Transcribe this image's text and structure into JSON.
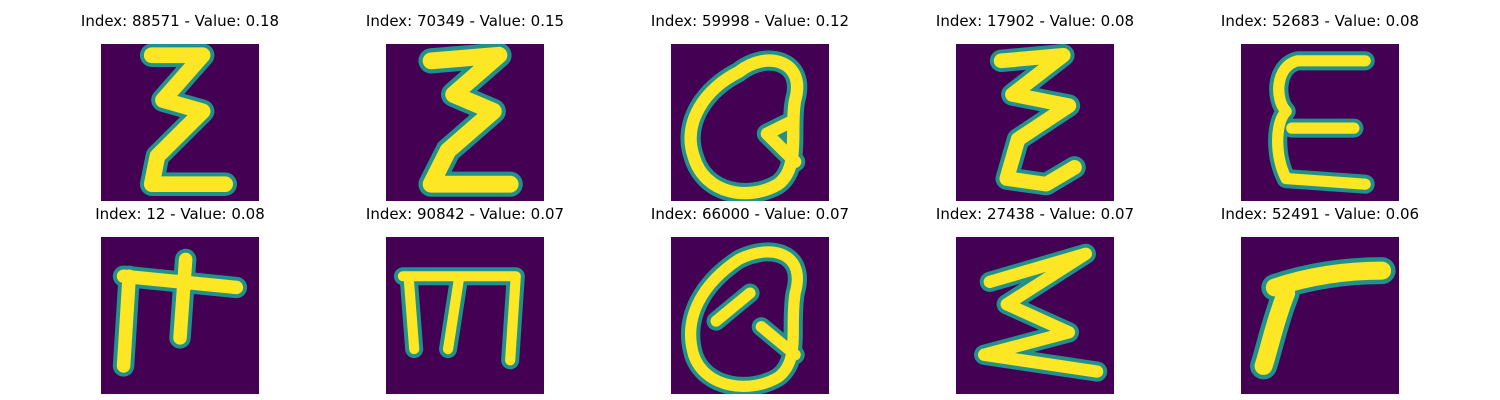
{
  "panels": [
    {
      "title": "Index: 88571 - Value: 0.18",
      "glyph": "sigma-like-glyph"
    },
    {
      "title": "Index: 70349 - Value: 0.15",
      "glyph": "sigma-like-glyph"
    },
    {
      "title": "Index: 59998 - Value: 0.12",
      "glyph": "q-like-glyph"
    },
    {
      "title": "Index: 17902 - Value: 0.08",
      "glyph": "sigma-like-glyph"
    },
    {
      "title": "Index: 52683 - Value: 0.08",
      "glyph": "e-like-glyph"
    },
    {
      "title": "Index: 12 - Value: 0.08",
      "glyph": "t-like-glyph"
    },
    {
      "title": "Index: 90842 - Value: 0.07",
      "glyph": "m-like-glyph"
    },
    {
      "title": "Index: 66000 - Value: 0.07",
      "glyph": "q-like-glyph"
    },
    {
      "title": "Index: 27438 - Value: 0.07",
      "glyph": "sigma-like-glyph"
    },
    {
      "title": "Index: 52491 - Value: 0.06",
      "glyph": "gamma-like-glyph"
    }
  ],
  "colors": {
    "background": "#440154",
    "stroke": "#fde725",
    "edge": "#21918c"
  }
}
